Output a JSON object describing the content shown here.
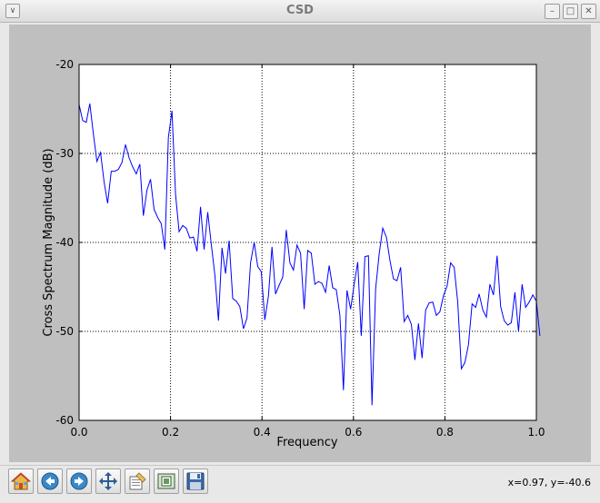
{
  "window": {
    "title": "CSD",
    "menu_glyph": "∨",
    "min_glyph": "–",
    "max_glyph": "□",
    "close_glyph": "✕"
  },
  "toolbar": {
    "buttons": [
      {
        "name": "home-button",
        "icon": "home-icon"
      },
      {
        "name": "back-button",
        "icon": "back-arrow-icon"
      },
      {
        "name": "forward-button",
        "icon": "forward-arrow-icon"
      },
      {
        "name": "pan-button",
        "icon": "move-arrows-icon"
      },
      {
        "name": "subplots-button",
        "icon": "subplots-config-icon"
      },
      {
        "name": "zoom-button",
        "icon": "zoom-to-rect-icon"
      },
      {
        "name": "save-button",
        "icon": "floppy-disk-icon"
      }
    ],
    "coords": "x=0.97, y=-40.6"
  },
  "chart_data": {
    "type": "line",
    "title": "",
    "xlabel": "Frequency",
    "ylabel": "Cross Spectrum Magnitude (dB)",
    "xlim": [
      0.0,
      1.0
    ],
    "ylim": [
      -60,
      -20
    ],
    "xticks": [
      0.0,
      0.2,
      0.4,
      0.6,
      0.8,
      1.0
    ],
    "yticks": [
      -20,
      -30,
      -40,
      -50,
      -60
    ],
    "xtick_labels": [
      "0.0",
      "0.2",
      "0.4",
      "0.6",
      "0.8",
      "1.0"
    ],
    "ytick_labels": [
      "-20",
      "-30",
      "-40",
      "-50",
      "-60"
    ],
    "grid": true,
    "line_color": "#0000ff",
    "series": [
      {
        "x_start": 0.0,
        "x_step": 0.0078125,
        "values": [
          -24.5,
          -26.3,
          -26.5,
          -24.4,
          -27.8,
          -30.9,
          -29.9,
          -33.2,
          -35.6,
          -32,
          -32,
          -31.8,
          -31,
          -29,
          -30.5,
          -31.5,
          -32.3,
          -31.2,
          -37,
          -34.1,
          -32.9,
          -36.3,
          -37.2,
          -37.9,
          -40.8,
          -28.2,
          -25.2,
          -34.6,
          -38.8,
          -38.1,
          -38.4,
          -39.5,
          -39.4,
          -41,
          -36,
          -40.8,
          -36.6,
          -40.2,
          -43.6,
          -48.8,
          -40.6,
          -43.5,
          -39.8,
          -46.3,
          -46.6,
          -47.2,
          -49.7,
          -48.5,
          -42.3,
          -40,
          -42.7,
          -43.3,
          -48.7,
          -46,
          -40.5,
          -45.8,
          -44.8,
          -43.9,
          -38.6,
          -42.3,
          -43.1,
          -40.3,
          -41.2,
          -47.5,
          -40.9,
          -41.2,
          -44.7,
          -44.4,
          -44.6,
          -45.6,
          -42.6,
          -45.1,
          -45.3,
          -48.2,
          -56.6,
          -45.4,
          -47.5,
          -44.7,
          -42.2,
          -50.5,
          -41.6,
          -41.5,
          -58.3,
          -45.2,
          -41.3,
          -38.4,
          -39.4,
          -42,
          -44.1,
          -44.3,
          -42.8,
          -48.9,
          -48.2,
          -49.2,
          -53.2,
          -49.1,
          -53,
          -47.6,
          -46.8,
          -46.7,
          -48.2,
          -47.8,
          -46,
          -44.9,
          -42.3,
          -42.8,
          -46.7,
          -54.2,
          -53.5,
          -51.5,
          -46.9,
          -47.3,
          -45.8,
          -47.6,
          -48.4,
          -44.7,
          -45.9,
          -41.5,
          -47.2,
          -48.8,
          -49.3,
          -49,
          -45.6,
          -50,
          -44.7,
          -47.3,
          -46.7,
          -45.9,
          -46.6,
          -50.5
        ]
      }
    ]
  }
}
